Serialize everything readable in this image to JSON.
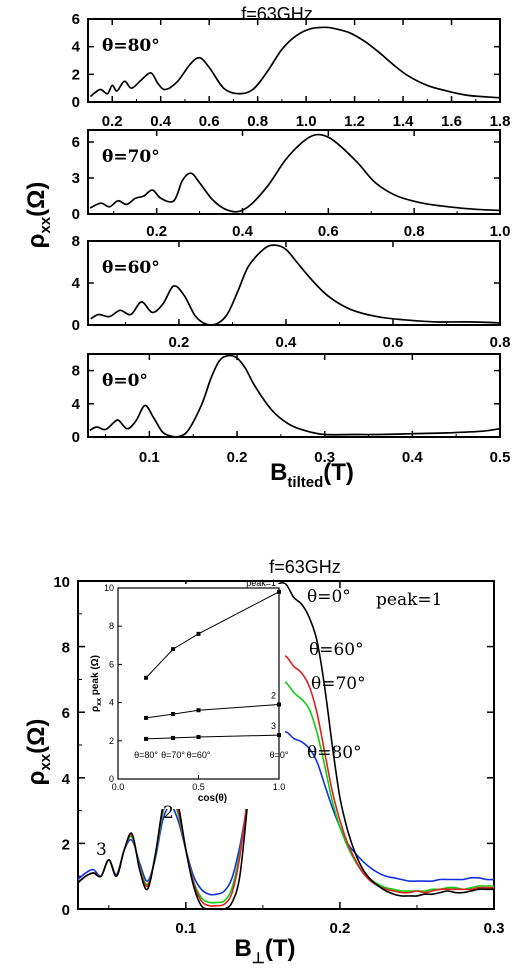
{
  "chart_data": [
    {
      "type": "line",
      "title": "f=63GHz",
      "xlabel_main": "B",
      "xlabel_sub": "tilted",
      "xlabel_unit": "(T)",
      "ylabel_main": "ρ",
      "ylabel_sub": "xx",
      "ylabel_unit": "(Ω)",
      "panels": [
        {
          "label": "θ=80°",
          "xlim": [
            0.1,
            1.8
          ],
          "ylim": [
            0,
            6
          ],
          "xticks": [
            "0.2",
            "0.4",
            "0.6",
            "0.8",
            "1.0",
            "1.2",
            "1.4",
            "1.6",
            "1.8"
          ],
          "xtick_values": [
            0.2,
            0.4,
            0.6,
            0.8,
            1.0,
            1.2,
            1.4,
            1.6,
            1.8
          ],
          "yticks": [
            "0",
            "2",
            "4",
            "6"
          ],
          "ytick_values": [
            0,
            2,
            4,
            6
          ],
          "series": [
            {
              "x": [
                0.11,
                0.15,
                0.18,
                0.2,
                0.22,
                0.25,
                0.28,
                0.32,
                0.36,
                0.39,
                0.42,
                0.47,
                0.52,
                0.56,
                0.6,
                0.66,
                0.72,
                0.78,
                0.84,
                0.9,
                0.96,
                1.02,
                1.08,
                1.12,
                1.18,
                1.24,
                1.3,
                1.36,
                1.42,
                1.5,
                1.58,
                1.66,
                1.72,
                1.8
              ],
              "y": [
                0.4,
                0.9,
                0.6,
                1.2,
                0.8,
                1.5,
                1.0,
                1.6,
                2.1,
                1.3,
                0.9,
                1.5,
                2.7,
                3.2,
                2.5,
                1.0,
                0.6,
                0.9,
                2.2,
                3.8,
                4.8,
                5.3,
                5.4,
                5.3,
                5.0,
                4.4,
                3.6,
                2.7,
                1.9,
                1.2,
                0.8,
                0.5,
                0.4,
                0.3
              ]
            }
          ]
        },
        {
          "label": "θ=70°",
          "xlim": [
            0.04,
            1.0
          ],
          "ylim": [
            0,
            7
          ],
          "xticks": [
            "0.2",
            "0.4",
            "0.6",
            "0.8",
            "1.0"
          ],
          "xtick_values": [
            0.2,
            0.4,
            0.6,
            0.8,
            1.0
          ],
          "yticks": [
            "0",
            "3",
            "6"
          ],
          "ytick_values": [
            0,
            3,
            6
          ],
          "series": [
            {
              "x": [
                0.045,
                0.07,
                0.09,
                0.11,
                0.13,
                0.15,
                0.17,
                0.19,
                0.21,
                0.24,
                0.26,
                0.28,
                0.3,
                0.33,
                0.36,
                0.39,
                0.42,
                0.46,
                0.5,
                0.54,
                0.57,
                0.6,
                0.63,
                0.67,
                0.71,
                0.76,
                0.82,
                0.88,
                0.94,
                1.0
              ],
              "y": [
                0.5,
                0.9,
                0.6,
                1.1,
                0.8,
                1.3,
                1.5,
                2.0,
                1.3,
                1.1,
                2.8,
                3.4,
                2.6,
                1.2,
                0.4,
                0.2,
                0.8,
                2.4,
                4.5,
                6.0,
                6.6,
                6.4,
                5.6,
                4.2,
                2.6,
                1.5,
                0.9,
                0.6,
                0.4,
                0.3
              ]
            }
          ]
        },
        {
          "label": "θ=60°",
          "xlim": [
            0.03,
            0.8
          ],
          "ylim": [
            0,
            8
          ],
          "xticks": [
            "0.2",
            "0.4",
            "0.6",
            "0.8"
          ],
          "xtick_values": [
            0.2,
            0.4,
            0.6,
            0.8
          ],
          "yticks": [
            "0",
            "4",
            "8"
          ],
          "ytick_values": [
            0,
            4,
            8
          ],
          "series": [
            {
              "x": [
                0.035,
                0.05,
                0.07,
                0.09,
                0.11,
                0.13,
                0.15,
                0.17,
                0.19,
                0.21,
                0.23,
                0.25,
                0.27,
                0.29,
                0.31,
                0.33,
                0.36,
                0.38,
                0.4,
                0.42,
                0.45,
                0.48,
                0.52,
                0.57,
                0.62,
                0.68,
                0.74,
                0.8
              ],
              "y": [
                0.6,
                1.0,
                0.8,
                1.4,
                1.0,
                2.2,
                1.2,
                2.0,
                3.7,
                2.8,
                0.9,
                0.1,
                0.1,
                1.0,
                3.2,
                5.6,
                7.3,
                7.6,
                7.2,
                6.0,
                4.2,
                2.7,
                1.5,
                0.8,
                0.5,
                0.3,
                0.3,
                0.2
              ]
            }
          ]
        },
        {
          "label": "θ=0°",
          "xlim": [
            0.03,
            0.5
          ],
          "ylim": [
            0,
            10
          ],
          "xticks": [
            "0.1",
            "0.2",
            "0.3",
            "0.4",
            "0.5"
          ],
          "xtick_values": [
            0.1,
            0.2,
            0.3,
            0.4,
            0.5
          ],
          "yticks": [
            "0",
            "4",
            "8"
          ],
          "ytick_values": [
            0,
            4,
            8
          ],
          "series": [
            {
              "x": [
                0.032,
                0.04,
                0.05,
                0.06,
                0.065,
                0.075,
                0.085,
                0.095,
                0.105,
                0.115,
                0.125,
                0.135,
                0.145,
                0.16,
                0.17,
                0.18,
                0.19,
                0.2,
                0.21,
                0.22,
                0.24,
                0.26,
                0.28,
                0.3,
                0.33,
                0.36,
                0.4,
                0.44,
                0.48,
                0.5
              ],
              "y": [
                0.8,
                1.2,
                0.9,
                1.8,
                2.0,
                1.0,
                2.0,
                3.8,
                2.3,
                0.6,
                0.1,
                0.1,
                0.9,
                4.0,
                7.0,
                9.2,
                9.8,
                9.5,
                8.2,
                6.2,
                3.2,
                1.5,
                0.7,
                0.3,
                0.3,
                0.3,
                0.4,
                0.5,
                0.7,
                1.0
              ]
            }
          ]
        }
      ]
    },
    {
      "type": "line",
      "title": "f=63GHz",
      "xlabel_main": "B",
      "xlabel_sub": "⊥",
      "xlabel_unit": "(T)",
      "ylabel_main": "ρ",
      "ylabel_sub": "xx",
      "ylabel_unit": "(Ω)",
      "xlim": [
        0.03,
        0.3
      ],
      "ylim": [
        0,
        10
      ],
      "xticks": [
        "0.1",
        "0.2",
        "0.3"
      ],
      "xtick_values": [
        0.1,
        0.2,
        0.3
      ],
      "yticks": [
        "0",
        "2",
        "4",
        "6",
        "8",
        "10"
      ],
      "ytick_values": [
        0,
        2,
        4,
        6,
        8,
        10
      ],
      "annotations": [
        "θ=0°",
        "peak=1",
        "θ=60°",
        "θ=70°",
        "θ=80°",
        "2",
        "3"
      ],
      "x": [
        0.03,
        0.035,
        0.04,
        0.045,
        0.05,
        0.055,
        0.06,
        0.065,
        0.07,
        0.075,
        0.08,
        0.085,
        0.09,
        0.095,
        0.1,
        0.105,
        0.11,
        0.115,
        0.12,
        0.125,
        0.13,
        0.135,
        0.14,
        0.145,
        0.15,
        0.155,
        0.16,
        0.165,
        0.17,
        0.175,
        0.18,
        0.185,
        0.19,
        0.195,
        0.2,
        0.205,
        0.21,
        0.215,
        0.22,
        0.225,
        0.23,
        0.235,
        0.24,
        0.245,
        0.25,
        0.255,
        0.26,
        0.265,
        0.27,
        0.275,
        0.28,
        0.285,
        0.29,
        0.295,
        0.3
      ],
      "series": [
        {
          "name": "θ=0°",
          "color": "#000000",
          "y": [
            0.8,
            1.0,
            1.1,
            1.0,
            1.5,
            1.0,
            1.8,
            2.3,
            1.2,
            0.6,
            1.6,
            3.1,
            3.9,
            3.2,
            1.8,
            0.7,
            0.1,
            0.0,
            0.0,
            0.0,
            0.2,
            1.0,
            3.2,
            6.0,
            8.3,
            9.5,
            9.9,
            9.9,
            9.5,
            9.3,
            8.9,
            8.2,
            6.8,
            5.0,
            3.4,
            2.4,
            1.7,
            1.2,
            0.9,
            0.7,
            0.55,
            0.45,
            0.4,
            0.4,
            0.4,
            0.45,
            0.45,
            0.5,
            0.55,
            0.5,
            0.5,
            0.55,
            0.6,
            0.6,
            0.6
          ]
        },
        {
          "name": "θ=60°",
          "color": "#e02020",
          "y": [
            0.8,
            1.0,
            1.1,
            1.0,
            1.5,
            1.0,
            1.8,
            2.25,
            1.25,
            0.7,
            1.6,
            3.0,
            3.6,
            3.0,
            1.8,
            0.8,
            0.25,
            0.1,
            0.1,
            0.15,
            0.5,
            1.6,
            3.4,
            5.4,
            6.9,
            7.5,
            7.7,
            7.7,
            7.4,
            7.2,
            6.8,
            6.0,
            4.8,
            3.6,
            2.7,
            2.0,
            1.5,
            1.1,
            0.85,
            0.7,
            0.6,
            0.55,
            0.5,
            0.5,
            0.55,
            0.5,
            0.55,
            0.6,
            0.6,
            0.6,
            0.6,
            0.6,
            0.65,
            0.65,
            0.65
          ]
        },
        {
          "name": "θ=70°",
          "color": "#10d010",
          "y": [
            0.8,
            1.0,
            1.1,
            1.0,
            1.5,
            1.0,
            1.8,
            2.2,
            1.3,
            0.75,
            1.55,
            2.9,
            3.45,
            2.9,
            1.8,
            0.85,
            0.35,
            0.2,
            0.2,
            0.25,
            0.65,
            1.7,
            3.3,
            5.0,
            6.3,
            6.8,
            6.9,
            6.9,
            6.6,
            6.4,
            6.1,
            5.4,
            4.4,
            3.3,
            2.5,
            1.9,
            1.45,
            1.1,
            0.9,
            0.75,
            0.65,
            0.6,
            0.55,
            0.55,
            0.55,
            0.55,
            0.6,
            0.6,
            0.65,
            0.65,
            0.6,
            0.65,
            0.7,
            0.7,
            0.7
          ]
        },
        {
          "name": "θ=80°",
          "color": "#1030e0",
          "y": [
            0.9,
            1.1,
            1.2,
            1.0,
            1.5,
            1.05,
            1.8,
            2.1,
            1.4,
            0.85,
            1.5,
            2.7,
            3.15,
            2.7,
            1.8,
            1.0,
            0.6,
            0.45,
            0.45,
            0.55,
            0.95,
            1.9,
            3.2,
            4.4,
            5.1,
            5.3,
            5.3,
            5.4,
            5.2,
            5.1,
            4.9,
            4.5,
            3.8,
            3.1,
            2.5,
            2.0,
            1.7,
            1.45,
            1.25,
            1.1,
            1.0,
            0.95,
            0.9,
            0.85,
            0.85,
            0.85,
            0.85,
            0.9,
            0.9,
            0.9,
            0.9,
            0.95,
            0.95,
            0.9,
            0.9
          ]
        }
      ],
      "inset": {
        "type": "scatter",
        "xlabel": "cos(θ)",
        "ylabel_main": "ρ",
        "ylabel_sub": "xx",
        "ylabel_unit": " peak (Ω)",
        "xlim": [
          0,
          1.0
        ],
        "ylim": [
          0,
          10
        ],
        "xticks": [
          "0.0",
          "0.5",
          "1.0"
        ],
        "xtick_values": [
          0,
          0.5,
          1.0
        ],
        "yticks": [
          "0",
          "2",
          "4",
          "6",
          "8",
          "10"
        ],
        "ytick_values": [
          0,
          2,
          4,
          6,
          8,
          10
        ],
        "x": [
          0.174,
          0.342,
          0.5,
          1.0
        ],
        "series": [
          {
            "name": "peak=1",
            "y": [
              5.3,
              6.8,
              7.6,
              9.8
            ]
          },
          {
            "name": "2",
            "y": [
              3.2,
              3.4,
              3.6,
              3.9
            ]
          },
          {
            "name": "3",
            "y": [
              2.1,
              2.15,
              2.2,
              2.3
            ]
          }
        ],
        "angle_labels": [
          "θ=80°",
          "θ=70°",
          "θ=60°",
          "θ=0°"
        ]
      }
    }
  ]
}
